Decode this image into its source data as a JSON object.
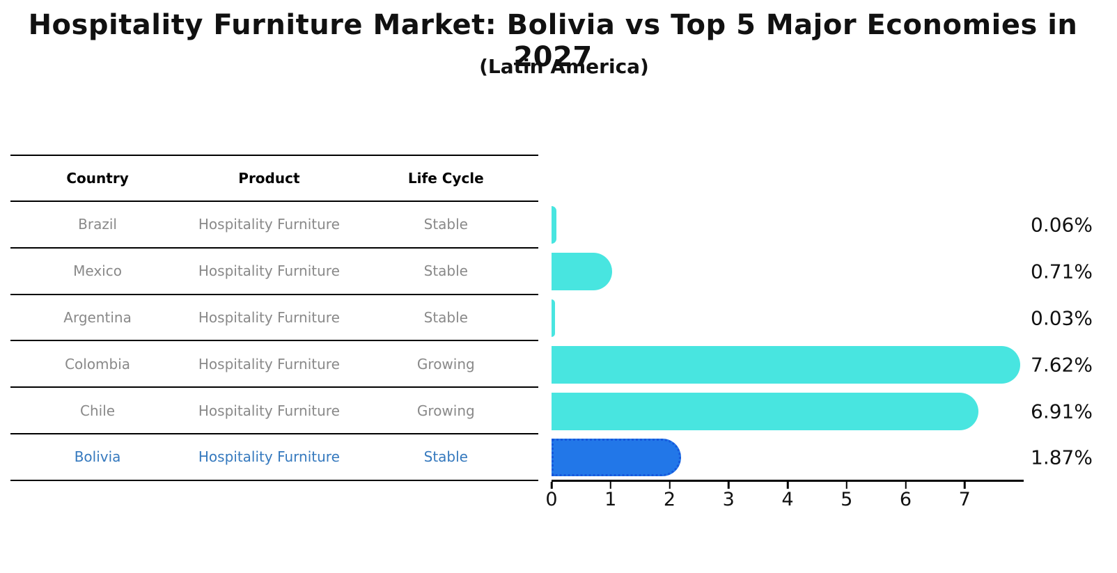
{
  "header": {
    "title": "Hospitality Furniture Market: Bolivia vs Top 5 Major Economies in 2027",
    "subtitle": "(Latin America)"
  },
  "table": {
    "headers": [
      "Country",
      "Product",
      "Life Cycle"
    ],
    "rows": [
      {
        "country": "Brazil",
        "product": "Hospitality Furniture",
        "life_cycle": "Stable"
      },
      {
        "country": "Mexico",
        "product": "Hospitality Furniture",
        "life_cycle": "Stable"
      },
      {
        "country": "Argentina",
        "product": "Hospitality Furniture",
        "life_cycle": "Stable"
      },
      {
        "country": "Colombia",
        "product": "Hospitality Furniture",
        "life_cycle": "Growing"
      },
      {
        "country": "Chile",
        "product": "Hospitality Furniture",
        "life_cycle": "Growing"
      },
      {
        "country": "Bolivia",
        "product": "Hospitality Furniture",
        "life_cycle": "Stable"
      }
    ],
    "highlight_row_index": 5
  },
  "chart_data": {
    "type": "bar",
    "orientation": "horizontal",
    "title": "Hospitality Furniture Market: Bolivia vs Top 5 Major Economies in 2027",
    "subtitle": "(Latin America)",
    "categories": [
      "Brazil",
      "Mexico",
      "Argentina",
      "Colombia",
      "Chile",
      "Bolivia"
    ],
    "values": [
      0.06,
      0.71,
      0.03,
      7.62,
      6.91,
      1.87
    ],
    "value_labels": [
      "0.06%",
      "0.71%",
      "0.03%",
      "7.62%",
      "6.91%",
      "1.87%"
    ],
    "xlabel": "",
    "ylabel": "",
    "xlim": [
      0,
      8
    ],
    "x_tick_labels": [
      "0",
      "1",
      "2",
      "3",
      "4",
      "5",
      "6",
      "7"
    ],
    "grid": false,
    "legend": "none",
    "highlight_index": 5,
    "colors": {
      "bar": "#48e5e0",
      "highlight_bar": "#2277e8",
      "highlight_border": "#1658dc",
      "highlight_text": "#3579be",
      "row_text": "#898989",
      "axis": "#000000",
      "label_text": "#111111"
    }
  }
}
